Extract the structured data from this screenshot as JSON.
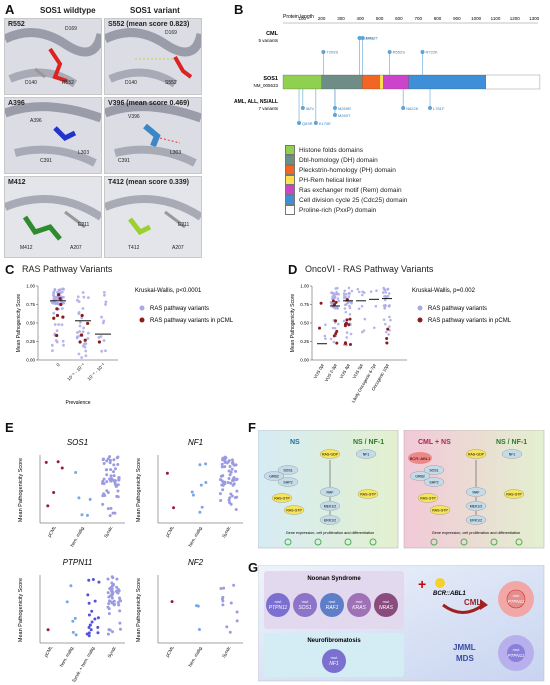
{
  "panelA": {
    "letter": "A",
    "col_wt": "SOS1 wildtype",
    "col_var": "SOS1 variant",
    "rows": [
      {
        "wt_title": "R552",
        "var_title": "S552 (mean score 0.823)",
        "wt_labels": [
          "D169",
          "D140",
          "R552"
        ],
        "var_labels": [
          "D169",
          "D140",
          "S552"
        ]
      },
      {
        "wt_title": "A396",
        "var_title": "V396 (mean score 0.469)",
        "wt_labels": [
          "A396",
          "C391",
          "L303"
        ],
        "var_labels": [
          "V396",
          "C391",
          "L303"
        ]
      },
      {
        "wt_title": "M412",
        "var_title": "T412 (mean score 0.339)",
        "wt_labels": [
          "E211",
          "M412",
          "A207"
        ],
        "var_labels": [
          "E211",
          "T412",
          "A207"
        ]
      }
    ]
  },
  "panelB": {
    "letter": "B",
    "axis_title": "Protein length",
    "ticks": [
      "100",
      "200",
      "300",
      "400",
      "500",
      "600",
      "700",
      "800",
      "900",
      "1000",
      "1100",
      "1200",
      "1300"
    ],
    "cml_title": "CML",
    "cml_sub": "5 variants",
    "cml_variants": [
      "T209S",
      "A396V",
      "M412T",
      "R552S",
      "R722K"
    ],
    "gene": "SOS1",
    "gene_id": "NM_005633",
    "aml_title": "AML, ALL, NS/ALL",
    "aml_sub": "7 variants",
    "aml_variants": [
      "Q83R",
      "K170E",
      "I82V",
      "M269R",
      "M269T",
      "N622K",
      "L761F"
    ],
    "legend": [
      {
        "label": "Histone folds domains",
        "color": "#8fd14f"
      },
      {
        "label": "Dbl-homology (DH) domain",
        "color": "#6e8d86"
      },
      {
        "label": "Pleckstrin-homology (PH) domain",
        "color": "#f26522"
      },
      {
        "label": "PH-Rem helical linker",
        "color": "#ffe14d"
      },
      {
        "label": "Ras exchanger motif (Rem) domain",
        "color": "#cc44cc"
      },
      {
        "label": "Cell division cycle 25 (Cdc25) domain",
        "color": "#3f8fd8"
      },
      {
        "label": "Proline-rich (PxxP) domain",
        "color": "#ffffff"
      }
    ]
  },
  "panelC": {
    "letter": "C",
    "title": "RAS Pathway Variants",
    "stat": "Kruskal-Wallis, p<0.0001",
    "ylabel": "Mean Pathogenicity Score",
    "xlabel": "Prevalence",
    "yticks": [
      "0.00",
      "0.25",
      "0.50",
      "0.75",
      "1.00"
    ],
    "xticks": [
      "0",
      "10⁻⁶ - 10⁻⁴",
      "10⁻⁴ - 10⁻²"
    ],
    "legend": [
      "RAS pathway variants",
      "RAS pathway variants in pCML"
    ]
  },
  "panelD": {
    "letter": "D",
    "title": "OncoVI - RAS Pathway Variants",
    "stat": "Kruskal-Wallis, p=0.002",
    "ylabel": "Mean Pathogenicity Score",
    "yticks": [
      "0.00",
      "0.25",
      "0.50",
      "0.75",
      "1.00"
    ],
    "xticks": [
      "VUS 0pt",
      "VUS 2-3pt",
      "VUS 4pt",
      "VUS 5pt",
      "Likely Oncogenic 6-7pt",
      "Oncogenic 10pt"
    ],
    "legend": [
      "RAS pathway variants",
      "RAS pathway variants in pCML"
    ]
  },
  "panelE": {
    "letter": "E",
    "ylabel": "Mean Pathogenicity Score",
    "subplots": [
      {
        "gene": "SOS1",
        "xticks": [
          "pCML",
          "hem. malig.",
          "Syndr."
        ]
      },
      {
        "gene": "NF1",
        "xticks": [
          "pCML",
          "hem. malig.",
          "Syndr."
        ]
      },
      {
        "gene": "PTPN11",
        "xticks": [
          "pCML",
          "hem. malig.",
          "Syndr. + hem. malig.",
          "Syndr."
        ]
      },
      {
        "gene": "NF2",
        "xticks": [
          "pCML",
          "hem. malig.",
          "Syndr."
        ]
      }
    ]
  },
  "panelF": {
    "letter": "F",
    "left_title_a": "NS",
    "left_title_b": "NS / NF-1",
    "right_title_a": "CML + NS",
    "right_title_b": "NS / NF-1",
    "nodes": [
      "SOS1",
      "SHP2",
      "GRB2",
      "RAS-GDP",
      "RAS-GTP",
      "RAF",
      "MEK1/2",
      "ERK1/2",
      "NF1"
    ],
    "footer": "Gene expression, cell proliferation and differentiation",
    "bcr_label": "BCR::ABL1"
  },
  "panelG": {
    "letter": "G",
    "noonan_title": "Noonan Syndrome",
    "noonan_genes": [
      "PTPN11",
      "SOS1",
      "RAF1",
      "KRAS",
      "NRAS"
    ],
    "nf_title": "Neurofibromatosis",
    "nf_genes": [
      "NF1"
    ],
    "mut_label": "mut",
    "bcr": "BCR::ABL1",
    "cml": "CML",
    "cml_gene": "PTPN11",
    "jmml": "JMML",
    "mds": "MDS",
    "jmml_gene": "PTPN11"
  }
}
